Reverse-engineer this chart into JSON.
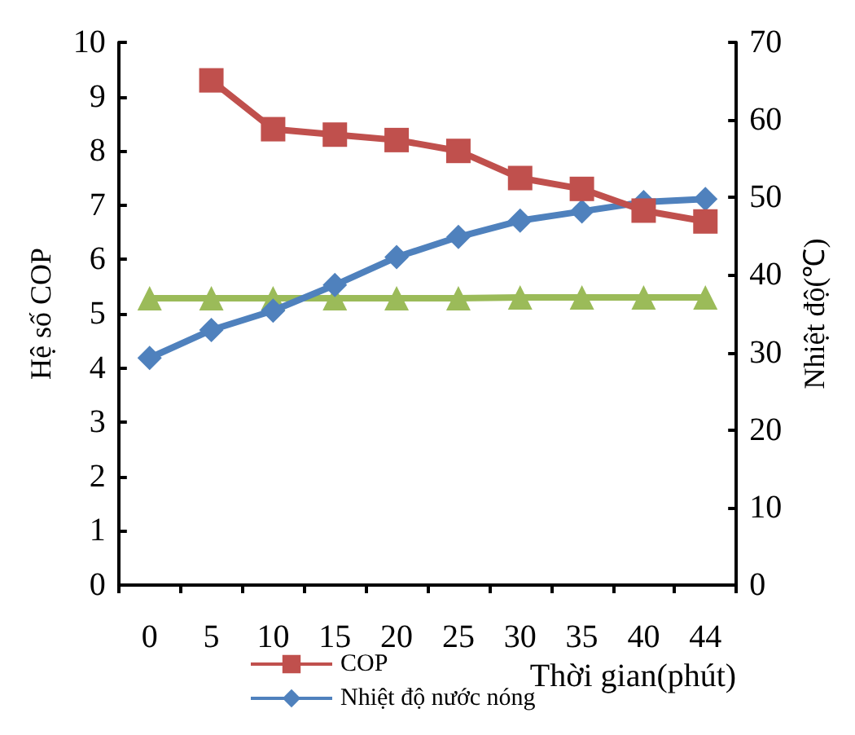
{
  "chart_data": {
    "type": "line",
    "xlabel": "Thời gian(phút)",
    "ylabel": "Hệ số COP",
    "y2label": "Nhiệt độ(℃)",
    "categories": [
      "0",
      "5",
      "10",
      "15",
      "20",
      "25",
      "30",
      "35",
      "40",
      "44"
    ],
    "ylim": [
      0,
      10
    ],
    "yticks": [
      0,
      1,
      2,
      3,
      4,
      5,
      6,
      7,
      8,
      9,
      10
    ],
    "y2lim": [
      0,
      70
    ],
    "y2ticks": [
      0,
      10,
      20,
      30,
      40,
      50,
      60,
      70
    ],
    "grid": false,
    "legend": "bottom",
    "series": [
      {
        "name": "COP",
        "color": "#c0504d",
        "marker": "square",
        "values": [
          null,
          9.3,
          8.4,
          8.3,
          8.2,
          8.0,
          7.5,
          7.3,
          6.9,
          6.7
        ]
      },
      {
        "name": "Nhiệt độ nước nóng",
        "color": "#4f81bd",
        "marker": "diamond",
        "axis": "y2",
        "values": [
          29.3,
          32.9,
          35.4,
          38.7,
          42.3,
          44.9,
          47.0,
          48.2,
          49.4,
          49.8
        ]
      },
      {
        "color": "#9bbb59",
        "marker": "triangle",
        "axis": "y2",
        "values": [
          37,
          37,
          37,
          37,
          37,
          37,
          37.1,
          37.1,
          37.1,
          37.1
        ]
      }
    ]
  }
}
